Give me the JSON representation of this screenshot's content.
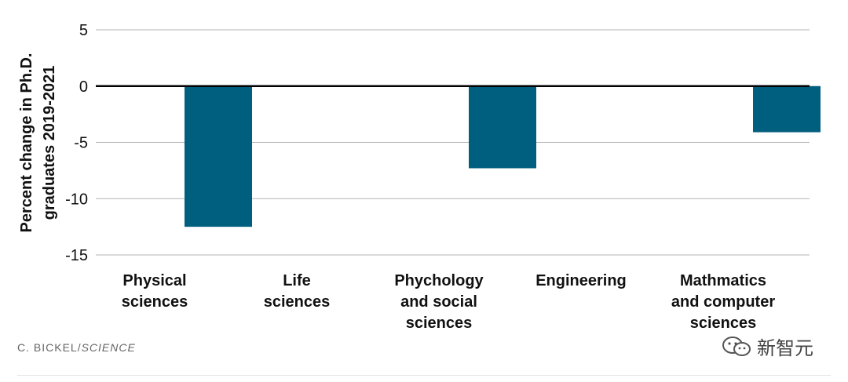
{
  "chart_data": {
    "type": "bar",
    "categories": [
      [
        "Physical",
        "sciences"
      ],
      [
        "Life",
        "sciences"
      ],
      [
        "Phychology",
        "and social",
        "sciences"
      ],
      [
        "Engineering"
      ],
      [
        "Mathmatics",
        "and computer",
        "sciences"
      ]
    ],
    "values": [
      -12.5,
      0,
      -7.3,
      0,
      -4.1
    ],
    "ylabel": [
      "Percent change in Ph.D.",
      "graduates 2019-2021"
    ],
    "xlabel": "",
    "ylim": [
      -15,
      5
    ],
    "yticks": [
      5,
      0,
      -5,
      -10,
      -15
    ],
    "bar_color": "#005f7f",
    "grid": true
  },
  "credit": {
    "author": "C. BICKEL/",
    "source": "SCIENCE"
  },
  "watermark": {
    "text": "新智元",
    "icon": "wechat-icon"
  }
}
